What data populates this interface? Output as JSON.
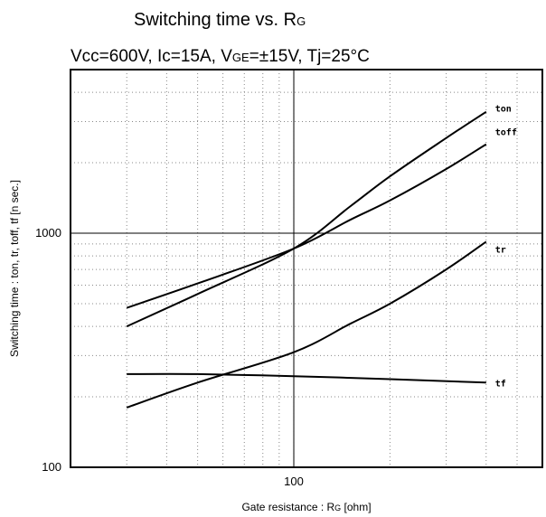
{
  "chart_data": {
    "type": "line",
    "title_main": "Switching time  vs.  R",
    "title_main_sub": "G",
    "title_conditions": [
      {
        "text": "Vcc=600V, Ic=15A, V",
        "sub": false
      },
      {
        "text": "GE",
        "sub": true
      },
      {
        "text": "=±15V, Tj=25°C",
        "sub": false
      }
    ],
    "xlabel": "Gate  resistance  :  R",
    "xlabel_sub": "G",
    "xlabel_unit": " [ohm]",
    "ylabel": "Switching  time  :  ton, tr, toff, tf  [n sec.]",
    "x_scale": "log",
    "y_scale": "log",
    "xlim": [
      20,
      600
    ],
    "ylim": [
      100,
      5000
    ],
    "x_ticks": [
      {
        "value": 100,
        "label": "100"
      }
    ],
    "y_ticks": [
      {
        "value": 100,
        "label": "100"
      },
      {
        "value": 1000,
        "label": "1000"
      }
    ],
    "grid": true,
    "series": [
      {
        "name": "ton",
        "x": [
          30,
          50,
          100,
          150,
          200,
          300,
          400
        ],
        "y": [
          400,
          550,
          860,
          1300,
          1750,
          2550,
          3300
        ]
      },
      {
        "name": "toff",
        "x": [
          30,
          50,
          100,
          150,
          200,
          300,
          400
        ],
        "y": [
          480,
          610,
          860,
          1140,
          1380,
          1880,
          2400
        ]
      },
      {
        "name": "tr",
        "x": [
          30,
          50,
          100,
          150,
          200,
          300,
          400
        ],
        "y": [
          180,
          230,
          310,
          410,
          500,
          700,
          920
        ]
      },
      {
        "name": "tf",
        "x": [
          30,
          50,
          100,
          200,
          400
        ],
        "y": [
          250,
          250,
          245,
          238,
          230
        ]
      }
    ]
  }
}
